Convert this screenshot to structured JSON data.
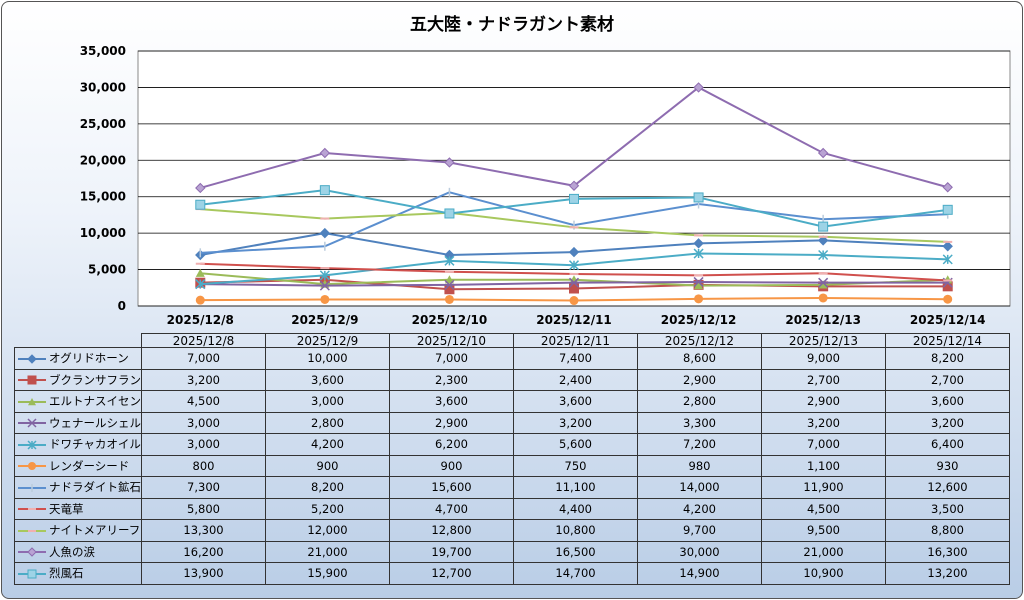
{
  "chart_data": {
    "type": "line",
    "title": "五大陸・ナドラガント素材",
    "categories": [
      "2025/12/8",
      "2025/12/9",
      "2025/12/10",
      "2025/12/11",
      "2025/12/12",
      "2025/12/13",
      "2025/12/14"
    ],
    "ylim": [
      0,
      35000
    ],
    "yticks": [
      "0",
      "5,000",
      "10,000",
      "15,000",
      "20,000",
      "25,000",
      "30,000",
      "35,000"
    ],
    "ytick_values": [
      0,
      5000,
      10000,
      15000,
      20000,
      25000,
      30000,
      35000
    ],
    "grid": true,
    "legend": "data-table",
    "series": [
      {
        "name": "オグリドホーン",
        "color": "#4F81BD",
        "marker": "diamond",
        "values": [
          7000,
          10000,
          7000,
          7400,
          8600,
          9000,
          8200
        ],
        "labels": [
          "7,000",
          "10,000",
          "7,000",
          "7,400",
          "8,600",
          "9,000",
          "8,200"
        ]
      },
      {
        "name": "ブクランサフラン",
        "color": "#C0504D",
        "marker": "square",
        "values": [
          3200,
          3600,
          2300,
          2400,
          2900,
          2700,
          2700
        ],
        "labels": [
          "3,200",
          "3,600",
          "2,300",
          "2,400",
          "2,900",
          "2,700",
          "2,700"
        ]
      },
      {
        "name": "エルトナスイセン",
        "color": "#9BBB59",
        "marker": "triangle",
        "values": [
          4500,
          3000,
          3600,
          3600,
          2800,
          2900,
          3600
        ],
        "labels": [
          "4,500",
          "3,000",
          "3,600",
          "3,600",
          "2,800",
          "2,900",
          "3,600"
        ]
      },
      {
        "name": "ウェナールシェル",
        "color": "#8064A2",
        "marker": "x",
        "values": [
          3000,
          2800,
          2900,
          3200,
          3300,
          3200,
          3200
        ],
        "labels": [
          "3,000",
          "2,800",
          "2,900",
          "3,200",
          "3,300",
          "3,200",
          "3,200"
        ]
      },
      {
        "name": "ドワチャカオイル",
        "color": "#4BACC6",
        "marker": "star",
        "values": [
          3000,
          4200,
          6200,
          5600,
          7200,
          7000,
          6400
        ],
        "labels": [
          "3,000",
          "4,200",
          "6,200",
          "5,600",
          "7,200",
          "7,000",
          "6,400"
        ]
      },
      {
        "name": "レンダーシード",
        "color": "#F79646",
        "marker": "circle",
        "values": [
          800,
          900,
          900,
          750,
          980,
          1100,
          930
        ],
        "labels": [
          "800",
          "900",
          "900",
          "750",
          "980",
          "1,100",
          "930"
        ]
      },
      {
        "name": "ナドラダイト鉱石",
        "color": "#5B8FCF",
        "marker": "plus",
        "values": [
          7300,
          8200,
          15600,
          11100,
          14000,
          11900,
          12600
        ],
        "labels": [
          "7,300",
          "8,200",
          "15,600",
          "11,100",
          "14,000",
          "11,900",
          "12,600"
        ]
      },
      {
        "name": "天竜草",
        "color": "#D0504D",
        "marker": "dash",
        "values": [
          5800,
          5200,
          4700,
          4400,
          4200,
          4500,
          3500
        ],
        "labels": [
          "5,800",
          "5,200",
          "4,700",
          "4,400",
          "4,200",
          "4,500",
          "3,500"
        ]
      },
      {
        "name": "ナイトメアリーフ",
        "color": "#A8C85E",
        "marker": "dash",
        "values": [
          13300,
          12000,
          12800,
          10800,
          9700,
          9500,
          8800
        ],
        "labels": [
          "13,300",
          "12,000",
          "12,800",
          "10,800",
          "9,700",
          "9,500",
          "8,800"
        ]
      },
      {
        "name": "人魚の涙",
        "color": "#8E6CB0",
        "marker": "diamond2",
        "values": [
          16200,
          21000,
          19700,
          16500,
          30000,
          21000,
          16300
        ],
        "labels": [
          "16,200",
          "21,000",
          "19,700",
          "16,500",
          "30,000",
          "21,000",
          "16,300"
        ]
      },
      {
        "name": "烈風石",
        "color": "#4BACC6",
        "marker": "square2",
        "values": [
          13900,
          15900,
          12700,
          14700,
          14900,
          10900,
          13200
        ],
        "labels": [
          "13,900",
          "15,900",
          "12,700",
          "14,700",
          "14,900",
          "10,900",
          "13,200"
        ]
      }
    ]
  }
}
